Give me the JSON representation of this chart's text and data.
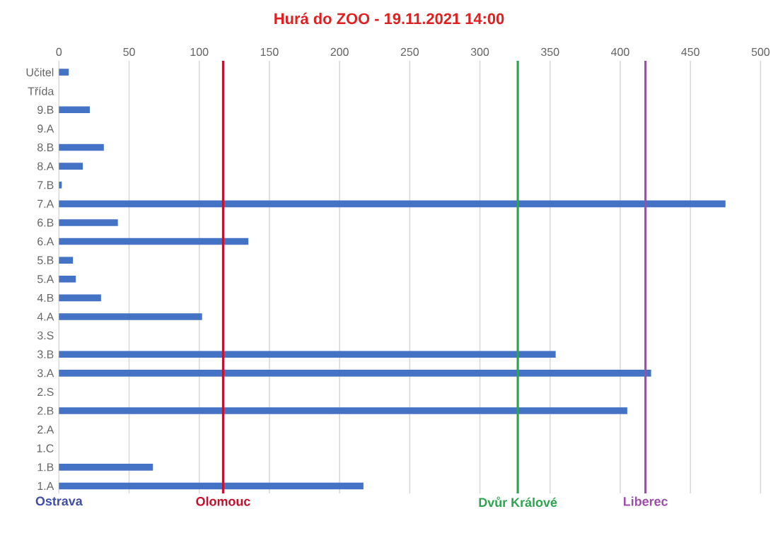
{
  "chart_data": {
    "type": "bar",
    "orientation": "horizontal",
    "title": "Hurá do ZOO - 19.11.2021 14:00",
    "categories": [
      "Učitel",
      "Třída",
      "9.B",
      "9.A",
      "8.B",
      "8.A",
      "7.B",
      "7.A",
      "6.B",
      "6.A",
      "5.B",
      "5.A",
      "4.B",
      "4.A",
      "3.S",
      "3.B",
      "3.A",
      "2.S",
      "2.B",
      "2.A",
      "1.C",
      "1.B",
      "1.A"
    ],
    "values": [
      7,
      null,
      22,
      null,
      32,
      17,
      2,
      475,
      42,
      135,
      10,
      12,
      30,
      102,
      null,
      354,
      422,
      null,
      405,
      null,
      null,
      67,
      217
    ],
    "color": "#4472c4",
    "xlim": [
      0,
      500
    ],
    "xticks": [
      0,
      50,
      100,
      150,
      200,
      250,
      300,
      350,
      400,
      450,
      500
    ],
    "grid": "x",
    "annotations": [
      "Ostrava"
    ],
    "ref_lines": [
      {
        "axis": "x",
        "value": 117,
        "label": "Olomouc",
        "color": "#c8102e"
      },
      {
        "axis": "x",
        "value": 327,
        "label": "Dvůr Králové",
        "color": "#2ea44f"
      },
      {
        "axis": "x",
        "value": 418,
        "label": "Liberec",
        "color": "#9b4fa8"
      }
    ]
  }
}
